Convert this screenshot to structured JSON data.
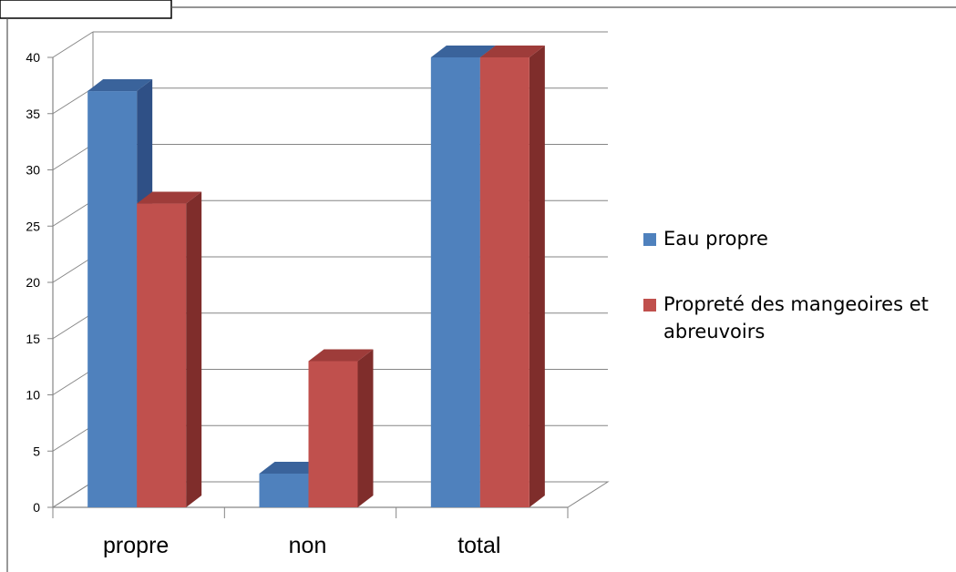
{
  "chart_data": {
    "type": "bar",
    "style": "3d-clustered-column",
    "categories": [
      "propre",
      "non",
      "total"
    ],
    "series": [
      {
        "name": "Eau propre",
        "values": [
          37,
          3,
          40
        ]
      },
      {
        "name": "Propreté des mangeoires et abreuvoirs",
        "values": [
          27,
          13,
          40
        ]
      }
    ],
    "y_ticks": [
      "0",
      "5",
      "10",
      "15",
      "20",
      "25",
      "30",
      "35",
      "40"
    ],
    "ylim": [
      0,
      40
    ],
    "grid": true,
    "legend_position": "right",
    "colors": {
      "Eau propre": {
        "front": "#4f81bd",
        "top": "#3a639b",
        "side": "#2f5086"
      },
      "Propreté des mangeoires et abreuvoirs": {
        "front": "#c0504d",
        "top": "#9e3c3a",
        "side": "#7f2d2b"
      },
      "gridline": "#868686",
      "axis": "#868686"
    }
  }
}
